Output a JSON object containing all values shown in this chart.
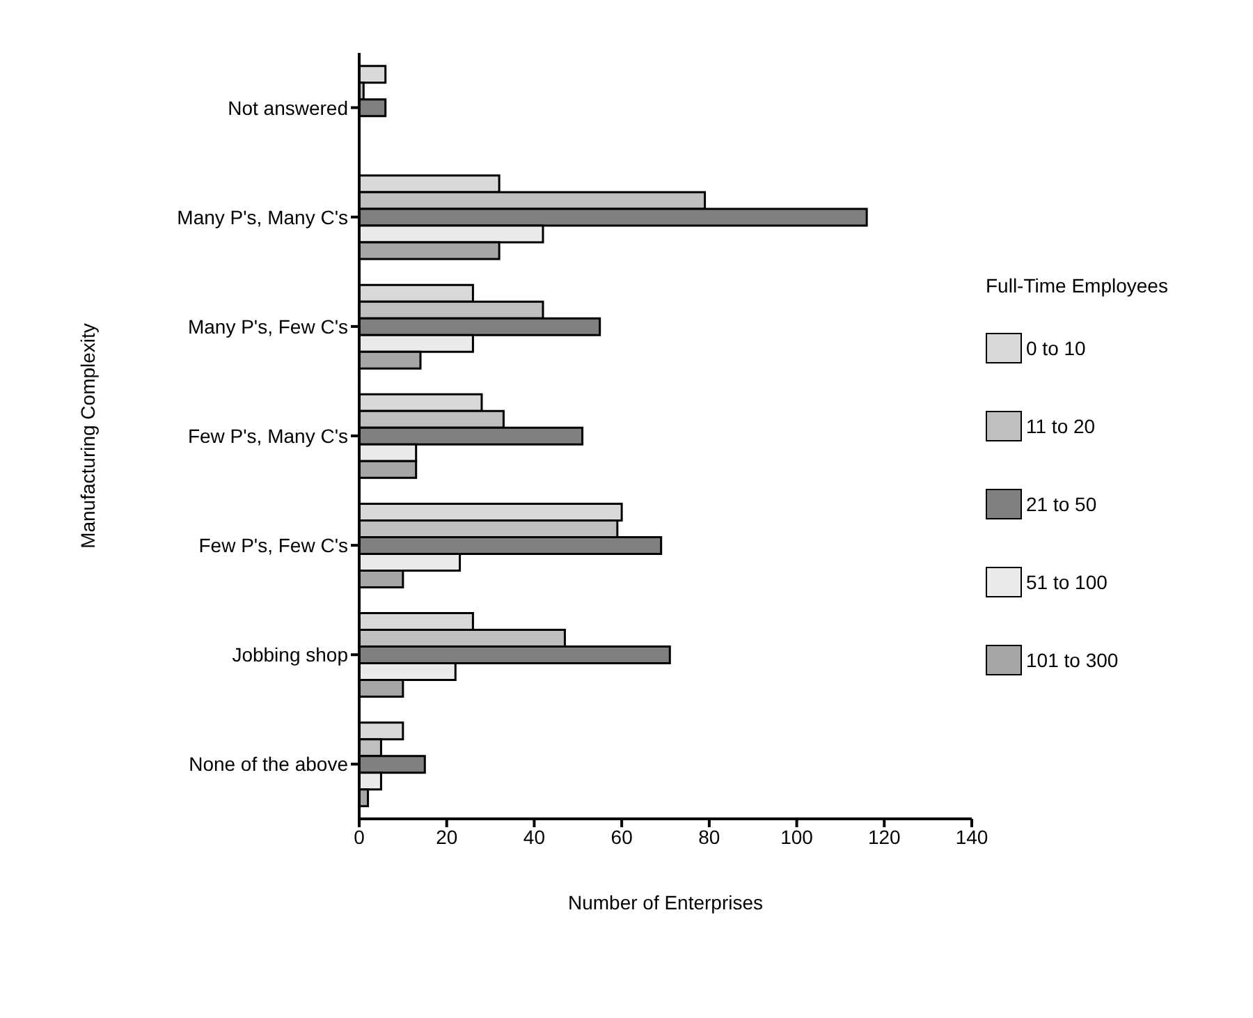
{
  "chart_data": {
    "type": "bar",
    "orientation": "horizontal",
    "xlabel": "Number of Enterprises",
    "ylabel": "Manufacturing Complexity",
    "legend_title": "Full-Time Employees",
    "legend": "right",
    "categories": [
      "Not answered",
      "Many P's, Many C's",
      "Many P's, Few C's",
      "Few P's, Many C's",
      "Few P's, Few C's",
      "Jobbing shop",
      "None of the above"
    ],
    "xlim": [
      0,
      140
    ],
    "xticks": [
      0,
      20,
      40,
      60,
      80,
      100,
      120,
      140
    ],
    "series": [
      {
        "name": "0 to 10",
        "color": "#d9d9d9",
        "values": [
          6,
          32,
          26,
          28,
          60,
          26,
          10
        ]
      },
      {
        "name": "11 to 20",
        "color": "#bfbfbf",
        "values": [
          1,
          79,
          42,
          33,
          59,
          47,
          5
        ]
      },
      {
        "name": "21 to 50",
        "color": "#808080",
        "values": [
          6,
          116,
          55,
          51,
          69,
          71,
          15
        ]
      },
      {
        "name": "51 to 100",
        "color": "#ebebeb",
        "values": [
          0,
          42,
          26,
          13,
          23,
          22,
          5
        ]
      },
      {
        "name": "101 to 300",
        "color": "#a6a6a6",
        "values": [
          0,
          32,
          14,
          13,
          10,
          10,
          2
        ]
      }
    ]
  }
}
